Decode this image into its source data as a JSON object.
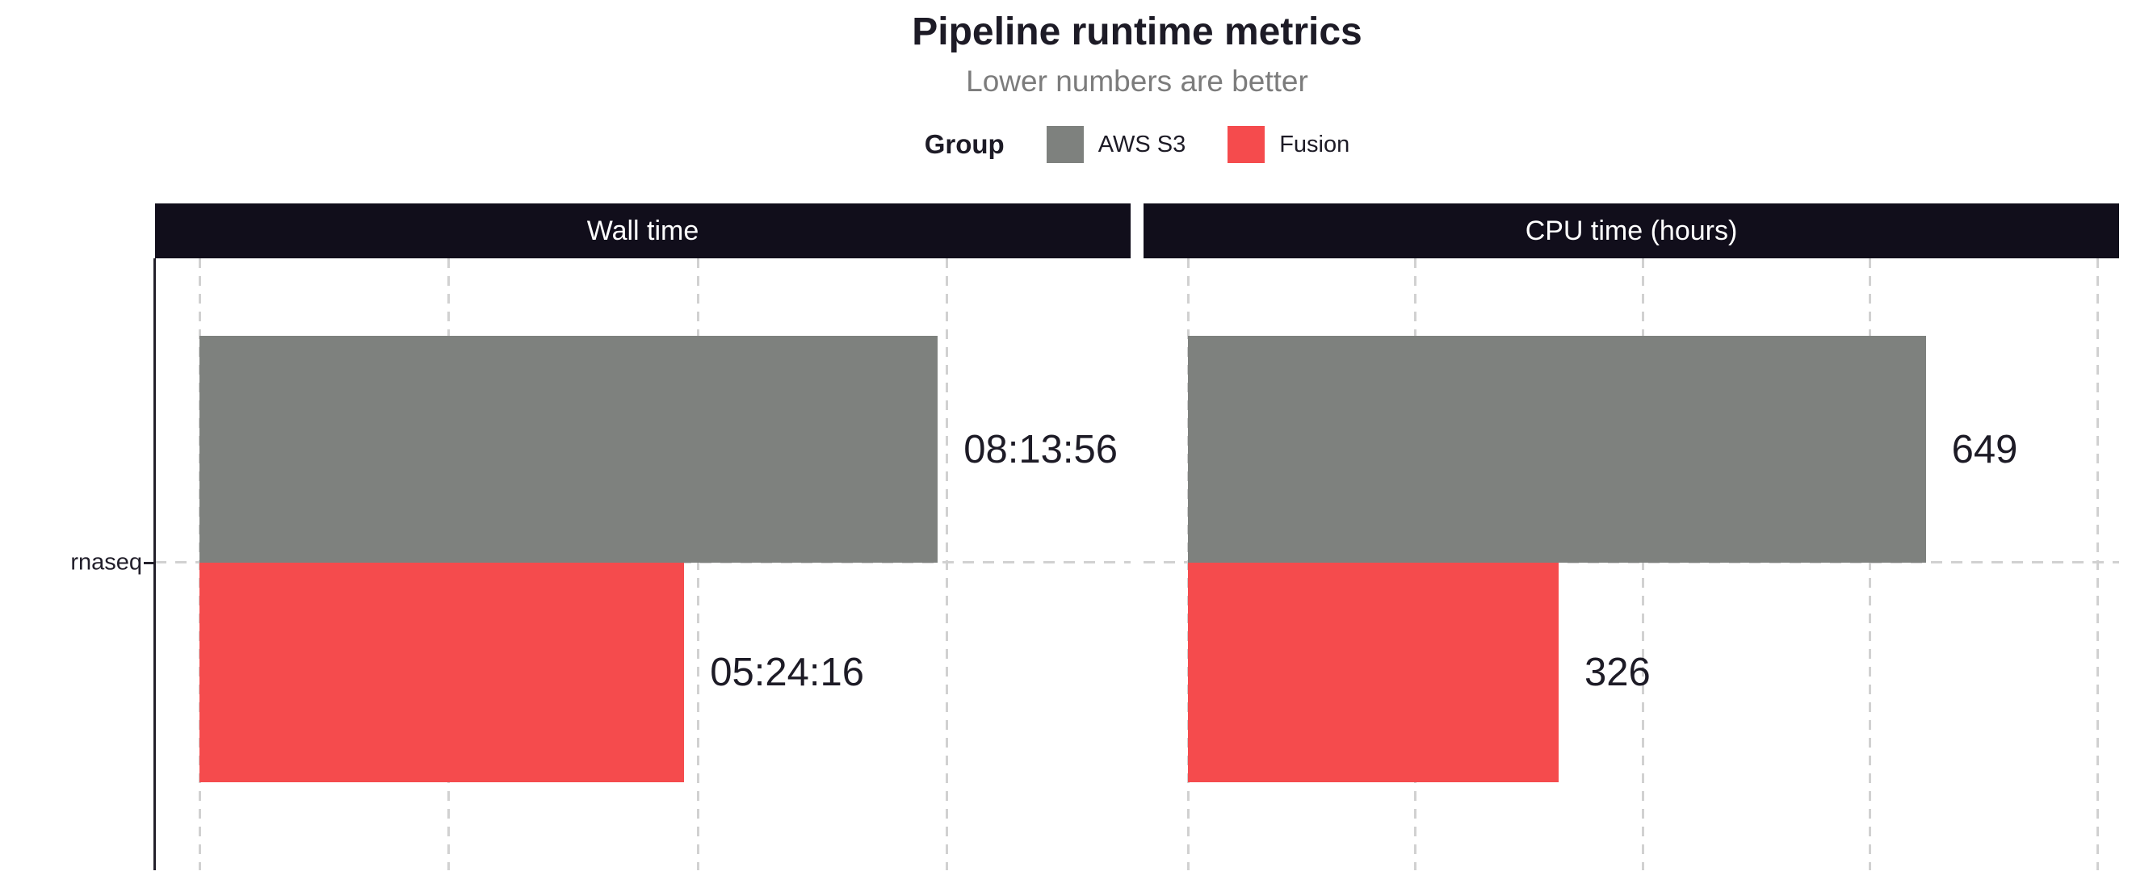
{
  "chart_data": {
    "type": "bar",
    "orientation": "horizontal",
    "title": "Pipeline runtime metrics",
    "subtitle": "Lower numbers are better",
    "legend": {
      "title": "Group",
      "position": "top",
      "entries": [
        {
          "label": "AWS S3",
          "color": "#7e817e"
        },
        {
          "label": "Fusion",
          "color": "#f54b4d"
        }
      ]
    },
    "categories": [
      "rnaseq"
    ],
    "facets": [
      {
        "title": "Wall time",
        "unit": "seconds",
        "series": [
          {
            "name": "AWS S3",
            "value": 29636,
            "label": "08:13:56"
          },
          {
            "name": "Fusion",
            "value": 19456,
            "label": "05:24:16"
          }
        ],
        "axis_min": 0,
        "axis_max": 37373,
        "gridline_values": [
          0,
          10000,
          20000,
          30000
        ],
        "grid": "dashed"
      },
      {
        "title": "CPU time (hours)",
        "unit": "hours",
        "series": [
          {
            "name": "AWS S3",
            "value": 649,
            "label": "649"
          },
          {
            "name": "Fusion",
            "value": 326,
            "label": "326"
          }
        ],
        "axis_min": 0,
        "axis_max": 819,
        "gridline_values": [
          0,
          200,
          400,
          600,
          800
        ],
        "grid": "dashed"
      }
    ],
    "colors": {
      "strip_bg": "#110e1b",
      "strip_text": "#ffffff",
      "axis_line": "#23202b",
      "gridline": "#d1d1d1",
      "text": "#1d1b26",
      "subtitle_text": "#7c7c7c"
    }
  }
}
